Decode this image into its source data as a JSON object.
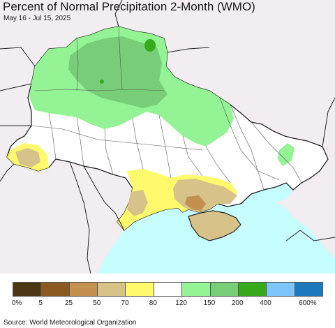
{
  "header": {
    "title": "Percent of Normal Precipitation 2-Month (WMO)",
    "subtitle": "May 16 - Jul 15, 2025"
  },
  "legend": {
    "colors": [
      "#4a3614",
      "#8b5a20",
      "#c39050",
      "#d7c389",
      "#fffa6c",
      "#ffffff",
      "#94f394",
      "#78cd78",
      "#37aa1b",
      "#7dc4fb",
      "#1e78be"
    ],
    "labels": [
      "0%",
      "5",
      "25",
      "50",
      "70",
      "80",
      "120",
      "150",
      "200",
      "400",
      "600%"
    ]
  },
  "footer": {
    "source": "Source: World Meteorological Organization"
  },
  "colors": {
    "background_land": "#f1edf1",
    "sea": "#c6fefe",
    "border": "#222222",
    "oblast_border": "#555555"
  }
}
